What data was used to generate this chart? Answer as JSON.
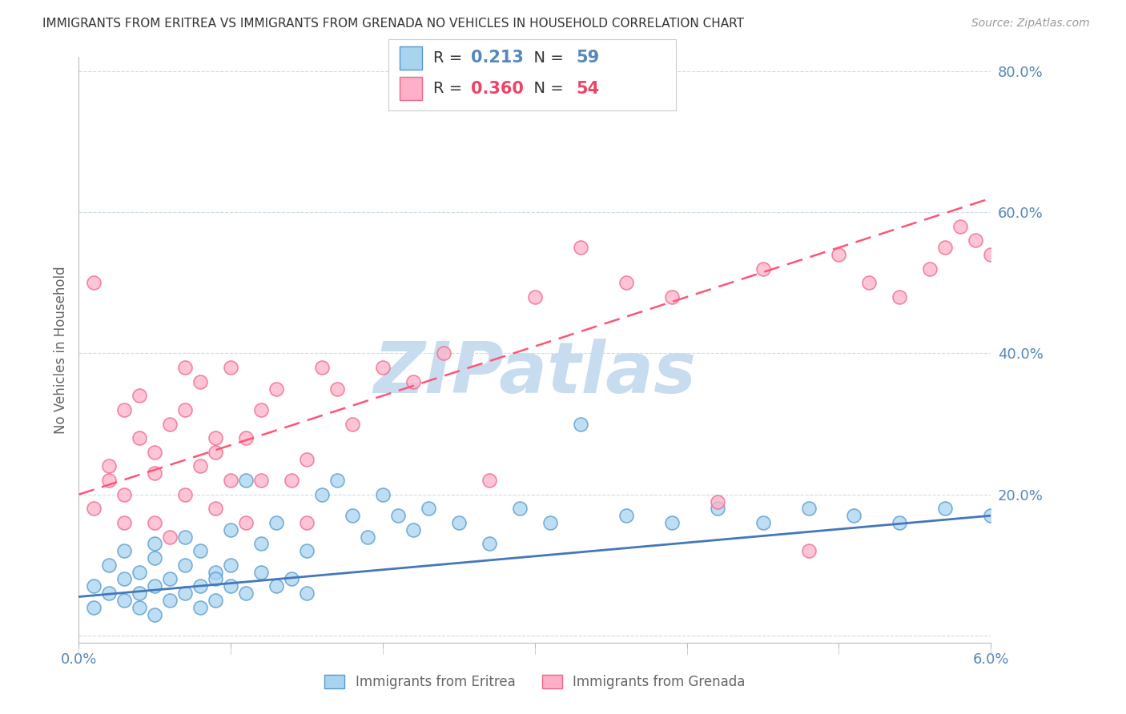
{
  "title": "IMMIGRANTS FROM ERITREA VS IMMIGRANTS FROM GRENADA NO VEHICLES IN HOUSEHOLD CORRELATION CHART",
  "source": "Source: ZipAtlas.com",
  "ylabel": "No Vehicles in Household",
  "watermark": "ZIPatlas",
  "xmin": 0.0,
  "xmax": 0.06,
  "ymin": -0.01,
  "ymax": 0.82,
  "yticks": [
    0.0,
    0.2,
    0.4,
    0.6,
    0.8
  ],
  "ytick_labels": [
    "",
    "20.0%",
    "40.0%",
    "60.0%",
    "80.0%"
  ],
  "xticks": [
    0.0,
    0.01,
    0.02,
    0.03,
    0.04,
    0.05,
    0.06
  ],
  "xtick_labels": [
    "0.0%",
    "",
    "",
    "",
    "",
    "",
    "6.0%"
  ],
  "legend_eritrea_R": "0.213",
  "legend_eritrea_N": "59",
  "legend_grenada_R": "0.360",
  "legend_grenada_N": "54",
  "color_eritrea_face": "#A8D4F0",
  "color_eritrea_edge": "#5599CC",
  "color_grenada_face": "#FFB0C8",
  "color_grenada_edge": "#EE6688",
  "color_trendline_eritrea": "#4477BB",
  "color_trendline_grenada": "#FF5577",
  "axis_color": "#5588BB",
  "watermark_color": "#C8DCF0",
  "eritrea_x": [
    0.001,
    0.001,
    0.002,
    0.002,
    0.003,
    0.003,
    0.003,
    0.004,
    0.004,
    0.004,
    0.005,
    0.005,
    0.005,
    0.005,
    0.006,
    0.006,
    0.007,
    0.007,
    0.007,
    0.008,
    0.008,
    0.008,
    0.009,
    0.009,
    0.009,
    0.01,
    0.01,
    0.01,
    0.011,
    0.011,
    0.012,
    0.012,
    0.013,
    0.013,
    0.014,
    0.015,
    0.015,
    0.016,
    0.017,
    0.018,
    0.019,
    0.02,
    0.021,
    0.022,
    0.023,
    0.025,
    0.027,
    0.029,
    0.031,
    0.033,
    0.036,
    0.039,
    0.042,
    0.045,
    0.048,
    0.051,
    0.054,
    0.057,
    0.06
  ],
  "eritrea_y": [
    0.07,
    0.04,
    0.06,
    0.1,
    0.05,
    0.08,
    0.12,
    0.04,
    0.09,
    0.06,
    0.03,
    0.11,
    0.07,
    0.13,
    0.08,
    0.05,
    0.1,
    0.06,
    0.14,
    0.07,
    0.04,
    0.12,
    0.09,
    0.05,
    0.08,
    0.15,
    0.07,
    0.1,
    0.22,
    0.06,
    0.09,
    0.13,
    0.07,
    0.16,
    0.08,
    0.12,
    0.06,
    0.2,
    0.22,
    0.17,
    0.14,
    0.2,
    0.17,
    0.15,
    0.18,
    0.16,
    0.13,
    0.18,
    0.16,
    0.3,
    0.17,
    0.16,
    0.18,
    0.16,
    0.18,
    0.17,
    0.16,
    0.18,
    0.17
  ],
  "grenada_x": [
    0.001,
    0.001,
    0.002,
    0.002,
    0.003,
    0.003,
    0.003,
    0.004,
    0.004,
    0.005,
    0.005,
    0.005,
    0.006,
    0.006,
    0.007,
    0.007,
    0.007,
    0.008,
    0.008,
    0.009,
    0.009,
    0.009,
    0.01,
    0.01,
    0.011,
    0.011,
    0.012,
    0.012,
    0.013,
    0.014,
    0.015,
    0.015,
    0.016,
    0.017,
    0.018,
    0.02,
    0.022,
    0.024,
    0.027,
    0.03,
    0.033,
    0.036,
    0.039,
    0.042,
    0.045,
    0.048,
    0.05,
    0.052,
    0.054,
    0.056,
    0.057,
    0.058,
    0.059,
    0.06
  ],
  "grenada_y": [
    0.5,
    0.18,
    0.22,
    0.24,
    0.32,
    0.2,
    0.16,
    0.28,
    0.34,
    0.26,
    0.23,
    0.16,
    0.3,
    0.14,
    0.38,
    0.32,
    0.2,
    0.36,
    0.24,
    0.28,
    0.18,
    0.26,
    0.22,
    0.38,
    0.16,
    0.28,
    0.32,
    0.22,
    0.35,
    0.22,
    0.25,
    0.16,
    0.38,
    0.35,
    0.3,
    0.38,
    0.36,
    0.4,
    0.22,
    0.48,
    0.55,
    0.5,
    0.48,
    0.19,
    0.52,
    0.12,
    0.54,
    0.5,
    0.48,
    0.52,
    0.55,
    0.58,
    0.56,
    0.54
  ]
}
